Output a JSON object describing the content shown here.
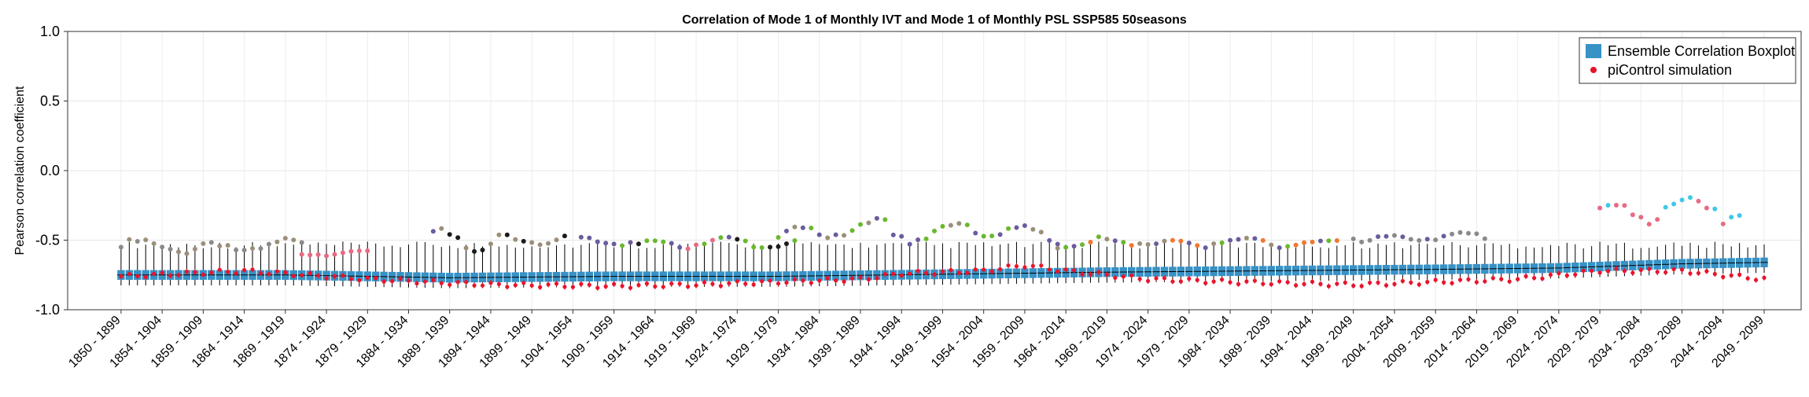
{
  "chart_data": {
    "type": "boxplot",
    "title": "Correlation of Mode 1 of Monthly IVT and Mode 1 of Monthly PSL SSP585 50seasons",
    "xlabel": "",
    "ylabel": "Pearson correlation coefficient",
    "ylim": [
      -1.0,
      1.0
    ],
    "yticks": [
      "1.0",
      "0.5",
      "0.0",
      "-0.5",
      "-1.0"
    ],
    "grid": true,
    "legend_position": "top-right",
    "colors": {
      "box": "#3792c6",
      "median": "#000000",
      "whisker": "#000000",
      "picontrol": "#e8142c",
      "outlier_palette": [
        "#6a5c9e",
        "#9b8f7a",
        "#8a8a8a",
        "#e86a82",
        "#6ab82e",
        "#40c8e8",
        "#1a1a1a",
        "#f07830"
      ]
    },
    "legend": [
      {
        "label": "Ensemble Correlation Boxplot",
        "color": "#3792c6",
        "marker": "square"
      },
      {
        "label": "piControl simulation",
        "color": "#e8142c",
        "marker": "circle"
      }
    ],
    "tick_labels": [
      "1850 - 1899",
      "1854 - 1904",
      "1859 - 1909",
      "1864 - 1914",
      "1869 - 1919",
      "1874 - 1924",
      "1879 - 1929",
      "1884 - 1934",
      "1889 - 1939",
      "1894 - 1944",
      "1899 - 1949",
      "1904 - 1954",
      "1909 - 1959",
      "1914 - 1964",
      "1919 - 1969",
      "1924 - 1974",
      "1929 - 1979",
      "1934 - 1984",
      "1939 - 1989",
      "1944 - 1994",
      "1949 - 1999",
      "1954 - 2004",
      "1959 - 2009",
      "1964 - 2014",
      "1969 - 2019",
      "1974 - 2024",
      "1979 - 2029",
      "1984 - 2034",
      "1989 - 2039",
      "1994 - 2044",
      "1999 - 2049",
      "2004 - 2054",
      "2009 - 2059",
      "2014 - 2064",
      "2019 - 2069",
      "2024 - 2074",
      "2029 - 2079",
      "2034 - 2084",
      "2039 - 2089",
      "2044 - 2094",
      "2049 - 2099"
    ],
    "n_windows": 201,
    "median_anchors": [
      [
        0,
        -0.75
      ],
      [
        20,
        -0.75
      ],
      [
        40,
        -0.77
      ],
      [
        60,
        -0.76
      ],
      [
        80,
        -0.76
      ],
      [
        100,
        -0.745
      ],
      [
        120,
        -0.73
      ],
      [
        140,
        -0.72
      ],
      [
        160,
        -0.71
      ],
      [
        175,
        -0.7
      ],
      [
        190,
        -0.67
      ],
      [
        200,
        -0.66
      ]
    ],
    "picontrol_anchors": [
      [
        0,
        -0.76
      ],
      [
        15,
        -0.72
      ],
      [
        30,
        -0.78
      ],
      [
        45,
        -0.82
      ],
      [
        60,
        -0.83
      ],
      [
        70,
        -0.82
      ],
      [
        80,
        -0.8
      ],
      [
        90,
        -0.78
      ],
      [
        95,
        -0.74
      ],
      [
        105,
        -0.72
      ],
      [
        110,
        -0.68
      ],
      [
        115,
        -0.72
      ],
      [
        125,
        -0.78
      ],
      [
        135,
        -0.8
      ],
      [
        150,
        -0.82
      ],
      [
        170,
        -0.78
      ],
      [
        180,
        -0.72
      ],
      [
        190,
        -0.72
      ],
      [
        200,
        -0.78
      ]
    ],
    "outlier_runs": [
      {
        "start": 0,
        "end": 22,
        "level": -0.55,
        "spread": 0.08,
        "colors": [
          2,
          1
        ]
      },
      {
        "start": 22,
        "end": 30,
        "level": -0.6,
        "spread": 0.03,
        "colors": [
          3
        ]
      },
      {
        "start": 38,
        "end": 54,
        "level": -0.5,
        "spread": 0.12,
        "colors": [
          0,
          1,
          6
        ]
      },
      {
        "start": 56,
        "end": 82,
        "level": -0.52,
        "spread": 0.06,
        "colors": [
          0,
          6,
          3,
          4
        ]
      },
      {
        "start": 80,
        "end": 114,
        "level": -0.44,
        "spread": 0.12,
        "colors": [
          1,
          0,
          4
        ]
      },
      {
        "start": 114,
        "end": 148,
        "level": -0.52,
        "spread": 0.05,
        "colors": [
          1,
          4,
          0,
          7
        ]
      },
      {
        "start": 150,
        "end": 166,
        "level": -0.48,
        "spread": 0.05,
        "colors": [
          2,
          0
        ]
      },
      {
        "start": 180,
        "end": 197,
        "level": -0.28,
        "spread": 0.12,
        "colors": [
          3,
          5
        ]
      }
    ]
  }
}
